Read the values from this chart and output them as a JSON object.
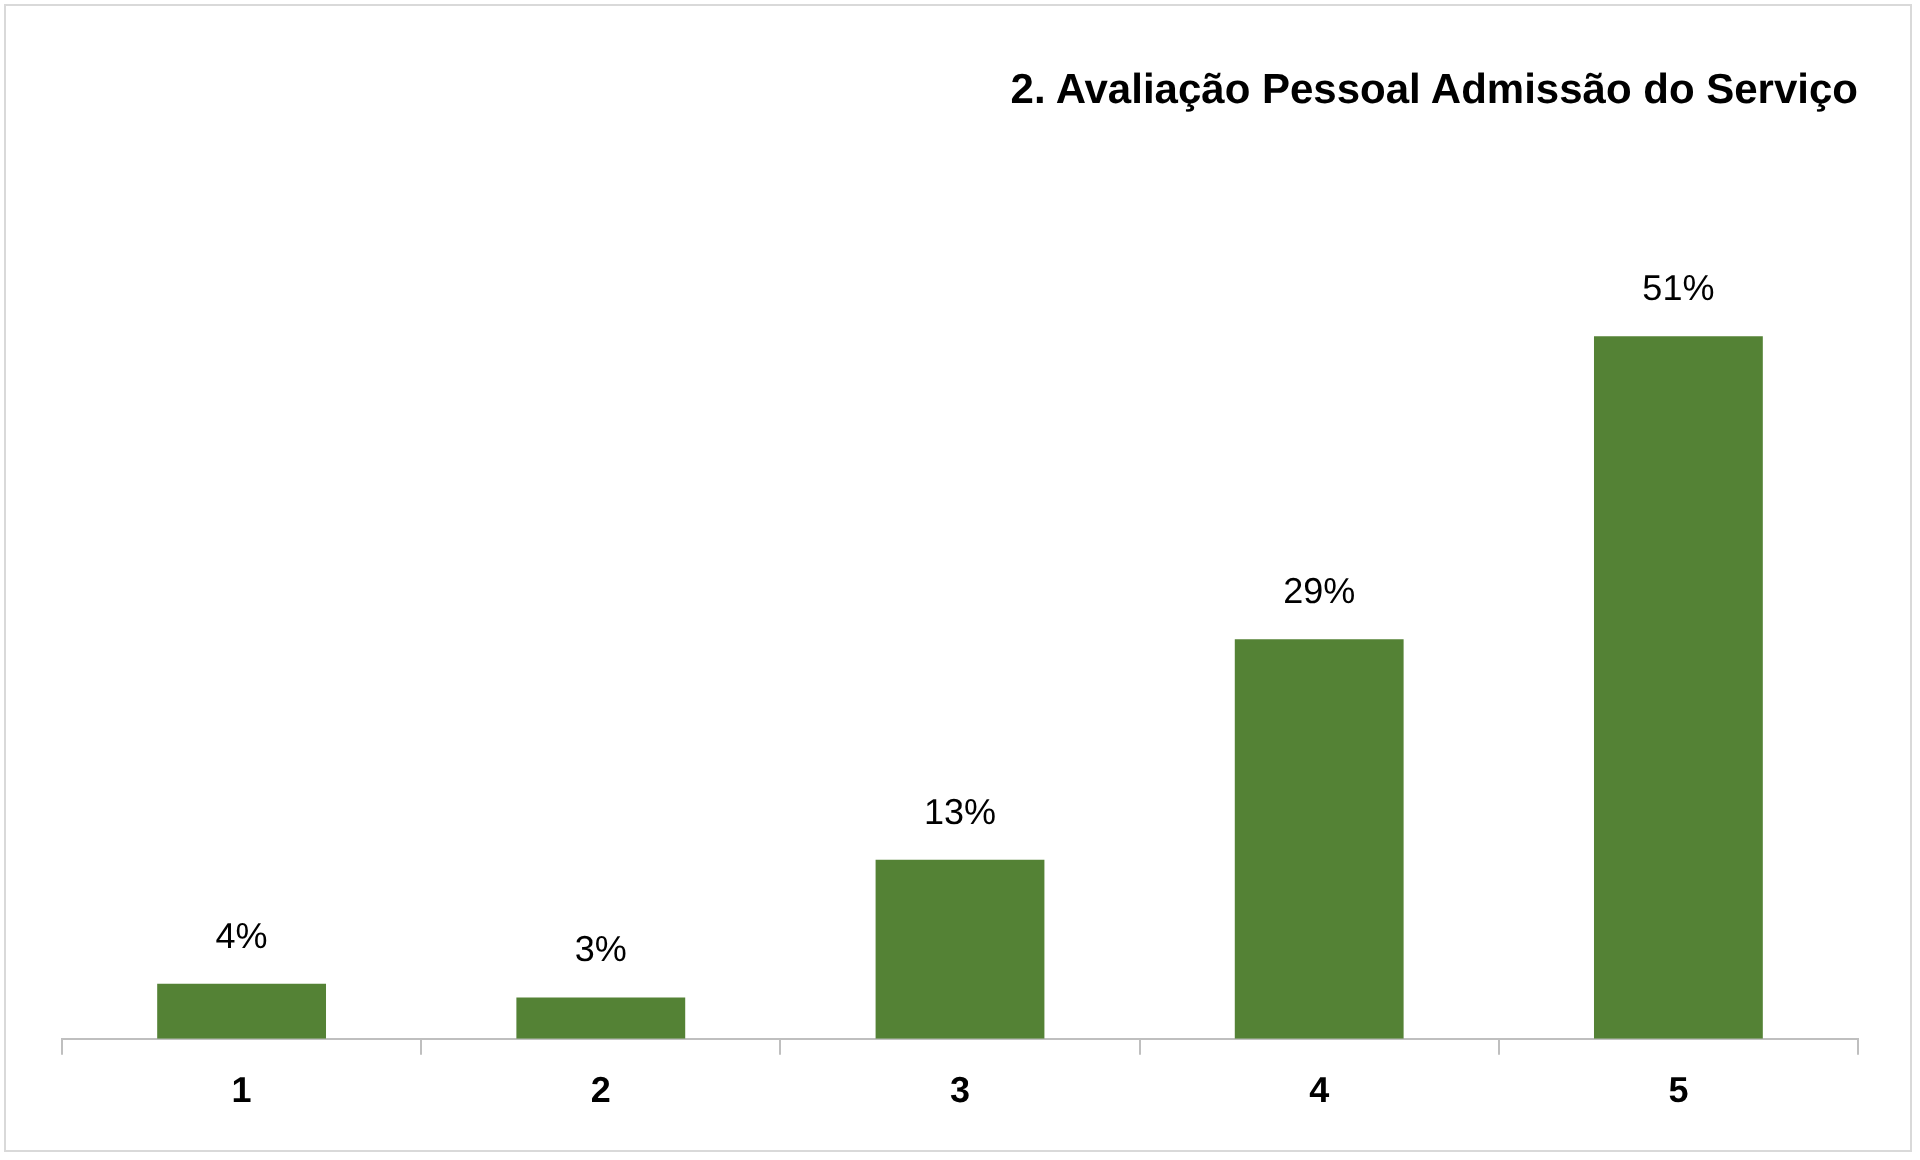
{
  "chart_data": {
    "type": "bar",
    "title": "2. Avaliação Pessoal Admissão do Serviço",
    "categories": [
      "1",
      "2",
      "3",
      "4",
      "5"
    ],
    "values": [
      4,
      3,
      13,
      29,
      51
    ],
    "value_labels": [
      "4%",
      "3%",
      "13%",
      "29%",
      "51%"
    ],
    "color": "#548235",
    "grid": false,
    "legend": false
  }
}
